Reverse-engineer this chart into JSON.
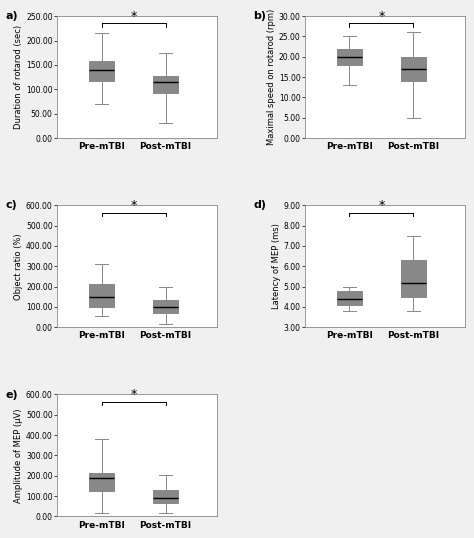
{
  "panels": [
    {
      "label": "a)",
      "ylabel": "Duration of rotarod (sec)",
      "ylim": [
        0,
        250
      ],
      "yticks": [
        0,
        50,
        100,
        150,
        200,
        250
      ],
      "ytick_labels": [
        "0.00",
        "50.00",
        "100.00",
        "150.00",
        "200.00",
        "250.00"
      ],
      "pre": {
        "whislo": 70,
        "q1": 118,
        "median": 140,
        "q3": 158,
        "whishi": 215
      },
      "post": {
        "whislo": 32,
        "q1": 92,
        "median": 115,
        "q3": 128,
        "whishi": 175
      },
      "sig": true
    },
    {
      "label": "b)",
      "ylabel": "Maximal speed on rotarod (rpm)",
      "ylim": [
        0,
        30
      ],
      "yticks": [
        0,
        5,
        10,
        15,
        20,
        25,
        30
      ],
      "ytick_labels": [
        "0.00",
        "5.00",
        "10.00",
        "15.00",
        "20.00",
        "25.00",
        "30.00"
      ],
      "pre": {
        "whislo": 13,
        "q1": 18,
        "median": 20,
        "q3": 22,
        "whishi": 25
      },
      "post": {
        "whislo": 5,
        "q1": 14,
        "median": 17,
        "q3": 20,
        "whishi": 26
      },
      "sig": true
    },
    {
      "label": "c)",
      "ylabel": "Object ratio (%)",
      "ylim": [
        0,
        600
      ],
      "yticks": [
        0,
        100,
        200,
        300,
        400,
        500,
        600
      ],
      "ytick_labels": [
        "0.00",
        "100.00",
        "200.00",
        "300.00",
        "400.00",
        "500.00",
        "600.00"
      ],
      "pre": {
        "whislo": 55,
        "q1": 100,
        "median": 148,
        "q3": 215,
        "whishi": 310
      },
      "post": {
        "whislo": 18,
        "q1": 68,
        "median": 100,
        "q3": 135,
        "whishi": 200
      },
      "sig": true
    },
    {
      "label": "d)",
      "ylabel": "Latency of MEP (ms)",
      "ylim": [
        3,
        9
      ],
      "yticks": [
        3,
        4,
        5,
        6,
        7,
        8,
        9
      ],
      "ytick_labels": [
        "3.00",
        "4.00",
        "5.00",
        "6.00",
        "7.00",
        "8.00",
        "9.00"
      ],
      "pre": {
        "whislo": 3.8,
        "q1": 4.1,
        "median": 4.4,
        "q3": 4.8,
        "whishi": 5.0
      },
      "post": {
        "whislo": 3.8,
        "q1": 4.5,
        "median": 5.2,
        "q3": 6.3,
        "whishi": 7.5
      },
      "sig": true
    },
    {
      "label": "e)",
      "ylabel": "Amplitude of MEP (μV)",
      "ylim": [
        0,
        600
      ],
      "yticks": [
        0,
        100,
        200,
        300,
        400,
        500,
        600
      ],
      "ytick_labels": [
        "0.00",
        "100.00",
        "200.00",
        "300.00",
        "400.00",
        "500.00",
        "600.00"
      ],
      "pre": {
        "whislo": 18,
        "q1": 125,
        "median": 190,
        "q3": 215,
        "whishi": 380
      },
      "post": {
        "whislo": 18,
        "q1": 65,
        "median": 90,
        "q3": 128,
        "whishi": 205
      },
      "sig": true
    }
  ],
  "box_color": "#f0f0f0",
  "median_color": "#000000",
  "whisker_color": "#888888",
  "cap_color": "#888888",
  "box_edge_color": "#888888",
  "xlabel_pre": "Pre-mTBI",
  "xlabel_post": "Post-mTBI",
  "bg_color": "#ffffff",
  "figure_bg": "#f0f0f0",
  "fontsize_label": 6.5,
  "fontsize_tick": 5.5,
  "fontsize_ylabel": 6,
  "fontsize_panel": 8,
  "fontsize_sig": 9
}
